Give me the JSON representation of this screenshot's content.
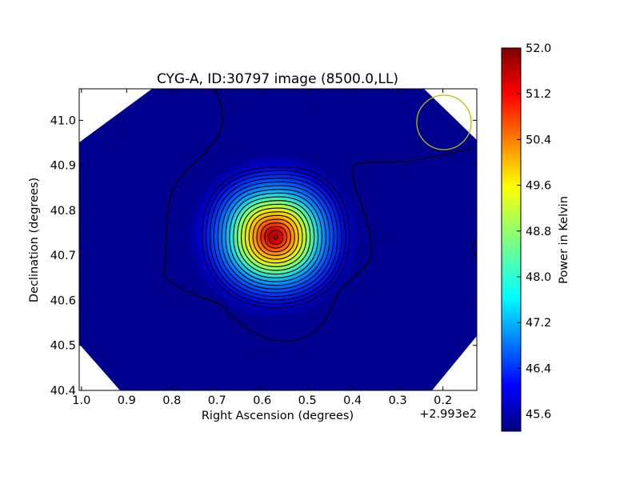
{
  "chart_data": {
    "type": "heatmap",
    "title": "CYG-A, ID:30797 image (8500.0,LL)",
    "xlabel": "Right Ascension (degrees)",
    "ylabel": "Declination (degrees)",
    "x_offset_label": "+2.993e2",
    "colorbar_label": "Power in Kelvin",
    "colormap": "jet",
    "xlim": [
      1.005,
      0.125
    ],
    "ylim": [
      40.4,
      41.07
    ],
    "x_ticks": [
      1.0,
      0.9,
      0.8,
      0.7,
      0.6,
      0.5,
      0.4,
      0.3,
      0.2
    ],
    "x_tick_labels": [
      "1.0",
      "0.9",
      "0.8",
      "0.7",
      "0.6",
      "0.5",
      "0.4",
      "0.3",
      "0.2"
    ],
    "y_ticks": [
      40.4,
      40.5,
      40.6,
      40.7,
      40.8,
      40.9,
      41.0
    ],
    "y_tick_labels": [
      "40.4",
      "40.5",
      "40.6",
      "40.7",
      "40.8",
      "40.9",
      "41.0"
    ],
    "colorbar_range": [
      45.3,
      52.0
    ],
    "colorbar_ticks": [
      45.6,
      46.4,
      47.2,
      48.0,
      48.8,
      49.6,
      50.4,
      51.2,
      52.0
    ],
    "colorbar_tick_labels": [
      "45.6",
      "46.4",
      "47.2",
      "48.0",
      "48.8",
      "49.6",
      "50.4",
      "51.2",
      "52.0"
    ],
    "peak": {
      "ra_offset": 0.57,
      "dec": 40.74,
      "value": 52.0
    },
    "contour_levels": 18,
    "beam_circle": {
      "ra_offset": 0.2,
      "dec": 40.995,
      "color": "#bfbf00"
    },
    "colors": {
      "background_field": "#00008f",
      "contour": "#000000"
    }
  }
}
